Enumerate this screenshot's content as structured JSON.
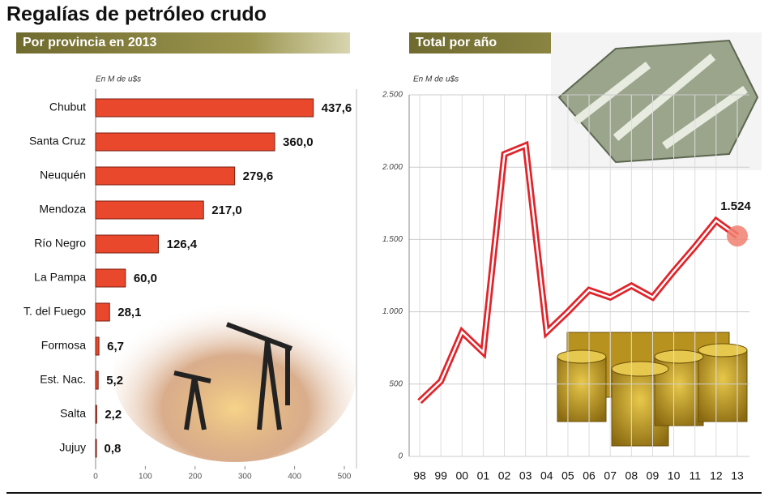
{
  "title": "Regalías de petróleo crudo",
  "chart_data": [
    {
      "type": "hbar",
      "title": "Por provincia en 2013",
      "axis_label": "En M de u$s",
      "categories": [
        "Chubut",
        "Santa Cruz",
        "Neuquén",
        "Mendoza",
        "Río Negro",
        "La Pampa",
        "T. del Fuego",
        "Formosa",
        "Est. Nac.",
        "Salta",
        "Jujuy"
      ],
      "values": [
        437.6,
        360.0,
        279.6,
        217.0,
        126.4,
        60.0,
        28.1,
        6.7,
        5.2,
        2.2,
        0.8
      ],
      "value_labels": [
        "437,6",
        "360,0",
        "279,6",
        "217,0",
        "126,4",
        "60,0",
        "28,1",
        "6,7",
        "5,2",
        "2,2",
        "0,8"
      ],
      "color": "#e9482c",
      "xlim": [
        0,
        500
      ],
      "xticks": [
        0,
        100,
        200,
        300,
        400,
        500
      ]
    },
    {
      "type": "line",
      "title": "Total por año",
      "axis_label": "En M de u$s",
      "categories": [
        "98",
        "99",
        "00",
        "01",
        "02",
        "03",
        "04",
        "05",
        "06",
        "07",
        "08",
        "09",
        "10",
        "11",
        "12",
        "13"
      ],
      "values": [
        380,
        520,
        860,
        720,
        2090,
        2150,
        860,
        1000,
        1150,
        1100,
        1180,
        1100,
        1280,
        1450,
        1630,
        1524
      ],
      "value_labels": [
        null,
        null,
        null,
        null,
        null,
        null,
        null,
        null,
        null,
        null,
        null,
        null,
        null,
        null,
        null,
        "1.524"
      ],
      "color": "#e0242b",
      "ylim": [
        0,
        2500
      ],
      "yticks": [
        0,
        500,
        {
          "value": 1000,
          "label": "1.000"
        },
        {
          "value": 1500,
          "label": "1.500"
        },
        {
          "value": 2000,
          "label": "2.000"
        },
        {
          "value": 2500,
          "label": "2.500"
        }
      ],
      "grid": true
    }
  ]
}
